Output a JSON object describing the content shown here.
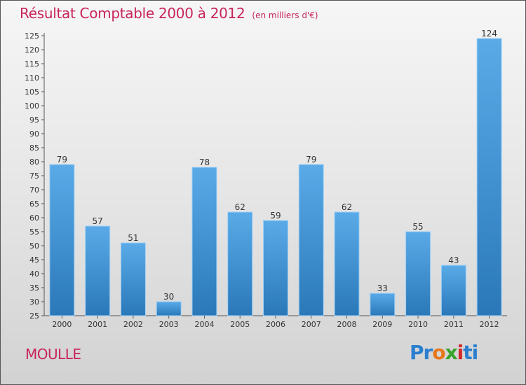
{
  "header": {
    "title": "Résultat Comptable 2000 à 2012",
    "subtitle": "(en milliers d'€)"
  },
  "footer": {
    "commune": "MOULLE",
    "logo_text": "Proxiti"
  },
  "colors": {
    "accent": "#c8245e",
    "bar_top": "#5aaae8",
    "bar_bottom": "#2a78b8"
  },
  "chart_data": {
    "type": "bar",
    "title": "Résultat Comptable 2000 à 2012",
    "subtitle": "(en milliers d'€)",
    "xlabel": "",
    "ylabel": "",
    "categories": [
      "2000",
      "2001",
      "2002",
      "2003",
      "2004",
      "2005",
      "2006",
      "2007",
      "2008",
      "2009",
      "2010",
      "2011",
      "2012"
    ],
    "values": [
      79,
      57,
      51,
      30,
      78,
      62,
      59,
      79,
      62,
      33,
      55,
      43,
      124
    ],
    "ylim": [
      25,
      125
    ],
    "ytick_step": 5,
    "grid": false,
    "data_labels": true
  }
}
